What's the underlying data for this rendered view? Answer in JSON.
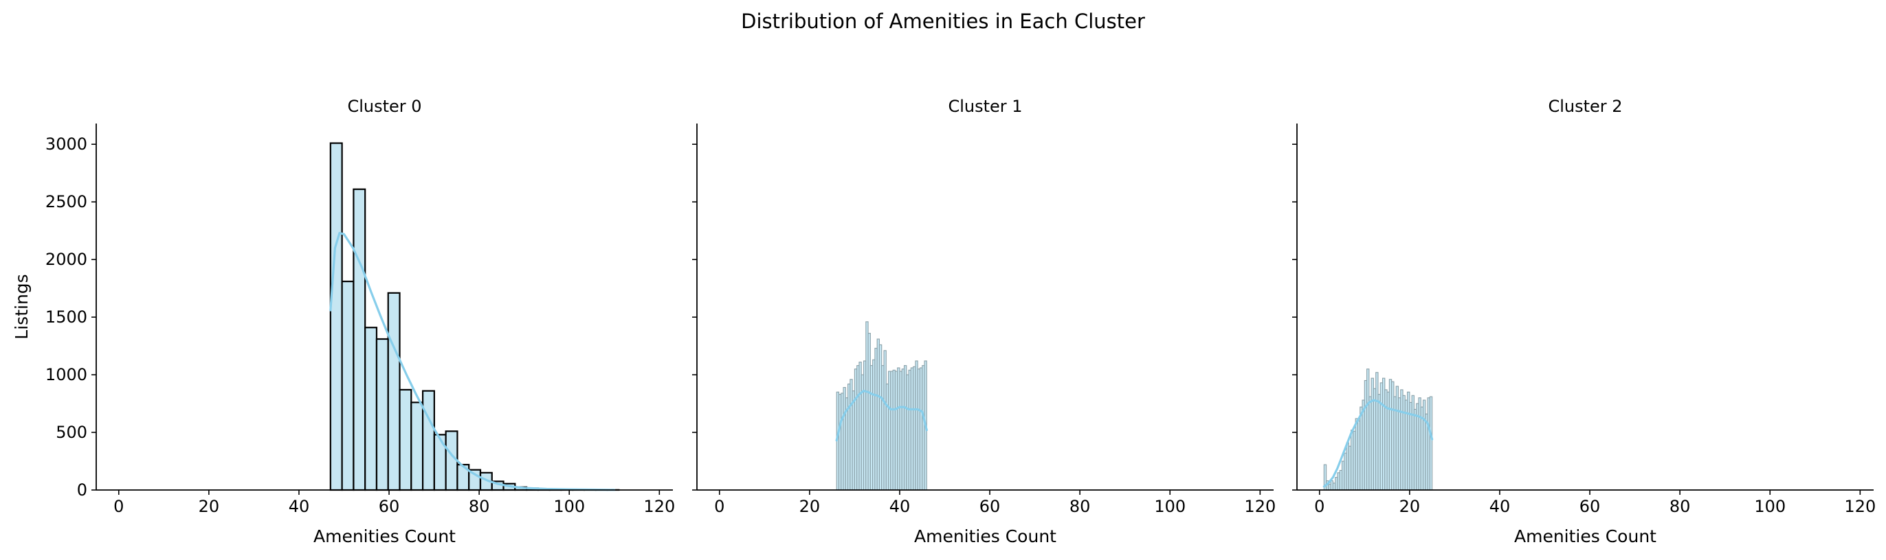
{
  "chart_data": {
    "type": "histogram",
    "suptitle": "Distribution of Amenities in Each Cluster",
    "ylabel": "Listings",
    "xlabel": "Amenities Count",
    "xlim": [
      -5,
      123
    ],
    "ylim": [
      0,
      3180
    ],
    "xticks": [
      0,
      20,
      40,
      60,
      80,
      100,
      120
    ],
    "yticks": [
      0,
      500,
      1000,
      1500,
      2000,
      2500,
      3000
    ],
    "shared_y": true,
    "colors": {
      "bar_fill": "#c6e6f2",
      "kde_line": "#87ceeb",
      "axis": "#000000"
    },
    "panels": [
      {
        "title": "Cluster 0",
        "bin_width": 2.56,
        "bar_edge": "#000000",
        "bins": [
          {
            "x": 47.0,
            "value": 3010
          },
          {
            "x": 49.56,
            "value": 1810
          },
          {
            "x": 52.12,
            "value": 2610
          },
          {
            "x": 54.68,
            "value": 1410
          },
          {
            "x": 57.24,
            "value": 1310
          },
          {
            "x": 59.8,
            "value": 1710
          },
          {
            "x": 62.36,
            "value": 870
          },
          {
            "x": 64.92,
            "value": 760
          },
          {
            "x": 67.48,
            "value": 860
          },
          {
            "x": 70.04,
            "value": 480
          },
          {
            "x": 72.6,
            "value": 510
          },
          {
            "x": 75.16,
            "value": 220
          },
          {
            "x": 77.72,
            "value": 175
          },
          {
            "x": 80.28,
            "value": 150
          },
          {
            "x": 82.84,
            "value": 75
          },
          {
            "x": 85.4,
            "value": 55
          },
          {
            "x": 87.96,
            "value": 25
          },
          {
            "x": 90.52,
            "value": 15
          },
          {
            "x": 93.08,
            "value": 8
          },
          {
            "x": 95.64,
            "value": 4
          },
          {
            "x": 98.2,
            "value": 2
          },
          {
            "x": 100.76,
            "value": 1
          },
          {
            "x": 103.32,
            "value": 1
          },
          {
            "x": 105.88,
            "value": 1
          },
          {
            "x": 108.44,
            "value": 1
          }
        ],
        "kde": {
          "x": [
            47.0,
            48.0,
            49.0,
            50.0,
            52.0,
            54.0,
            56.0,
            58.0,
            60.0,
            62.0,
            64.0,
            66.0,
            68.0,
            70.0,
            72.0,
            74.0,
            76.0,
            78.0,
            80.0,
            82.0,
            84.0,
            86.0,
            88.0,
            90.0,
            95.0,
            100.0,
            105.0,
            110.0
          ],
          "y": [
            1560,
            2100,
            2230,
            2220,
            2100,
            1930,
            1720,
            1520,
            1330,
            1160,
            990,
            830,
            680,
            530,
            400,
            300,
            220,
            160,
            115,
            80,
            55,
            38,
            26,
            18,
            9,
            5,
            3,
            1
          ]
        }
      },
      {
        "title": "Cluster 1",
        "bin_width": 0.5,
        "bar_edge": "#8aa0a8",
        "bins": [
          {
            "x": 26.0,
            "value": 850
          },
          {
            "x": 26.5,
            "value": 830
          },
          {
            "x": 27.0,
            "value": 840
          },
          {
            "x": 27.5,
            "value": 890
          },
          {
            "x": 28.0,
            "value": 800
          },
          {
            "x": 28.5,
            "value": 920
          },
          {
            "x": 29.0,
            "value": 960
          },
          {
            "x": 29.5,
            "value": 860
          },
          {
            "x": 30.0,
            "value": 1050
          },
          {
            "x": 30.5,
            "value": 1080
          },
          {
            "x": 31.0,
            "value": 1110
          },
          {
            "x": 31.5,
            "value": 1000
          },
          {
            "x": 32.0,
            "value": 1120
          },
          {
            "x": 32.5,
            "value": 1460
          },
          {
            "x": 33.0,
            "value": 1360
          },
          {
            "x": 33.5,
            "value": 1080
          },
          {
            "x": 34.0,
            "value": 1130
          },
          {
            "x": 34.5,
            "value": 1230
          },
          {
            "x": 35.0,
            "value": 1310
          },
          {
            "x": 35.5,
            "value": 1260
          },
          {
            "x": 36.0,
            "value": 1080
          },
          {
            "x": 36.5,
            "value": 1210
          },
          {
            "x": 37.0,
            "value": 920
          },
          {
            "x": 37.5,
            "value": 1030
          },
          {
            "x": 38.0,
            "value": 1030
          },
          {
            "x": 38.5,
            "value": 1040
          },
          {
            "x": 39.0,
            "value": 1030
          },
          {
            "x": 39.5,
            "value": 1060
          },
          {
            "x": 40.0,
            "value": 1030
          },
          {
            "x": 40.5,
            "value": 1050
          },
          {
            "x": 41.0,
            "value": 1080
          },
          {
            "x": 41.5,
            "value": 1000
          },
          {
            "x": 42.0,
            "value": 1040
          },
          {
            "x": 42.5,
            "value": 1060
          },
          {
            "x": 43.0,
            "value": 1070
          },
          {
            "x": 43.5,
            "value": 1120
          },
          {
            "x": 44.0,
            "value": 1050
          },
          {
            "x": 44.5,
            "value": 1060
          },
          {
            "x": 45.0,
            "value": 1080
          },
          {
            "x": 45.5,
            "value": 1120
          }
        ],
        "kde": {
          "x": [
            26.0,
            27.0,
            28.0,
            29.0,
            30.0,
            31.0,
            32.0,
            33.0,
            34.0,
            35.0,
            36.0,
            37.0,
            38.0,
            39.0,
            40.0,
            41.0,
            42.0,
            43.0,
            44.0,
            45.0,
            46.0
          ],
          "y": [
            430,
            600,
            680,
            730,
            780,
            830,
            860,
            850,
            830,
            820,
            800,
            740,
            700,
            700,
            720,
            720,
            700,
            700,
            700,
            680,
            520
          ]
        }
      },
      {
        "title": "Cluster 2",
        "bin_width": 0.5,
        "bar_edge": "#8aa0a8",
        "bins": [
          {
            "x": 1.0,
            "value": 220
          },
          {
            "x": 1.5,
            "value": 80
          },
          {
            "x": 2.0,
            "value": 50
          },
          {
            "x": 2.5,
            "value": 80
          },
          {
            "x": 3.0,
            "value": 60
          },
          {
            "x": 3.5,
            "value": 110
          },
          {
            "x": 4.0,
            "value": 150
          },
          {
            "x": 4.5,
            "value": 170
          },
          {
            "x": 5.0,
            "value": 250
          },
          {
            "x": 5.5,
            "value": 320
          },
          {
            "x": 6.0,
            "value": 410
          },
          {
            "x": 6.5,
            "value": 380
          },
          {
            "x": 7.0,
            "value": 520
          },
          {
            "x": 7.5,
            "value": 510
          },
          {
            "x": 8.0,
            "value": 620
          },
          {
            "x": 8.5,
            "value": 600
          },
          {
            "x": 9.0,
            "value": 720
          },
          {
            "x": 9.5,
            "value": 780
          },
          {
            "x": 10.0,
            "value": 950
          },
          {
            "x": 10.5,
            "value": 1050
          },
          {
            "x": 11.0,
            "value": 810
          },
          {
            "x": 11.5,
            "value": 970
          },
          {
            "x": 12.0,
            "value": 880
          },
          {
            "x": 12.5,
            "value": 1020
          },
          {
            "x": 13.0,
            "value": 830
          },
          {
            "x": 13.5,
            "value": 930
          },
          {
            "x": 14.0,
            "value": 970
          },
          {
            "x": 14.5,
            "value": 870
          },
          {
            "x": 15.0,
            "value": 850
          },
          {
            "x": 15.5,
            "value": 960
          },
          {
            "x": 16.0,
            "value": 940
          },
          {
            "x": 16.5,
            "value": 810
          },
          {
            "x": 17.0,
            "value": 900
          },
          {
            "x": 17.5,
            "value": 800
          },
          {
            "x": 18.0,
            "value": 870
          },
          {
            "x": 18.5,
            "value": 820
          },
          {
            "x": 19.0,
            "value": 780
          },
          {
            "x": 19.5,
            "value": 850
          },
          {
            "x": 20.0,
            "value": 760
          },
          {
            "x": 20.5,
            "value": 820
          },
          {
            "x": 21.0,
            "value": 700
          },
          {
            "x": 21.5,
            "value": 750
          },
          {
            "x": 22.0,
            "value": 800
          },
          {
            "x": 22.5,
            "value": 720
          },
          {
            "x": 23.0,
            "value": 780
          },
          {
            "x": 23.5,
            "value": 660
          },
          {
            "x": 24.0,
            "value": 800
          },
          {
            "x": 24.5,
            "value": 810
          }
        ],
        "kde": {
          "x": [
            1.0,
            2.0,
            3.0,
            4.0,
            5.0,
            6.0,
            7.0,
            8.0,
            9.0,
            10.0,
            11.0,
            12.0,
            13.0,
            14.0,
            15.0,
            16.0,
            17.0,
            18.0,
            19.0,
            20.0,
            21.0,
            22.0,
            23.0,
            24.0,
            25.0
          ],
          "y": [
            30,
            60,
            110,
            190,
            290,
            390,
            490,
            570,
            640,
            710,
            760,
            780,
            770,
            740,
            710,
            700,
            690,
            680,
            670,
            660,
            650,
            640,
            620,
            580,
            440
          ]
        }
      }
    ]
  }
}
